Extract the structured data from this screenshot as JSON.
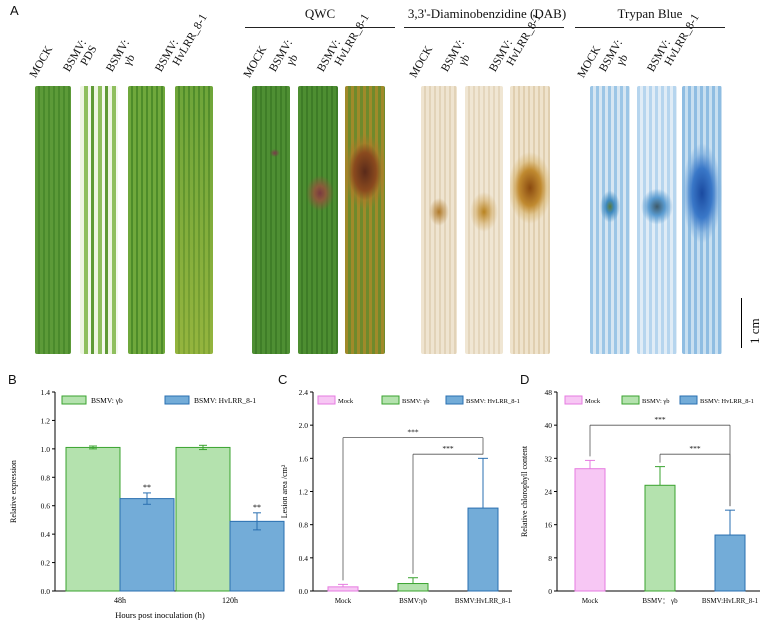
{
  "panels": {
    "a": "A",
    "b": "B",
    "c": "C",
    "d": "D"
  },
  "photo": {
    "groups": [
      "QWC",
      "3,3'-Diaminobenzidine (DAB)",
      "Trypan Blue"
    ],
    "labels": [
      [
        "MOCK"
      ],
      [
        "BSMV:",
        "PDS"
      ],
      [
        "BSMV:",
        "γb"
      ],
      [
        "BSMV:",
        "HvLRR_8-1"
      ],
      [
        "MOCK"
      ],
      [
        "BSMV:",
        "γb"
      ],
      [
        "BSMV:",
        "HvLRR_8-1"
      ],
      [
        "MOCK"
      ],
      [
        "BSMV:",
        "γb"
      ],
      [
        "BSMV:",
        "HvLRR_8-1"
      ],
      [
        "MOCK"
      ],
      [
        "BSMV:",
        "γb"
      ],
      [
        "BSMV:",
        "HvLRR_8-1"
      ]
    ],
    "scale": "1 cm"
  },
  "colors": {
    "mock": "#f7c7f4",
    "mock_edge": "#e67be0",
    "gb": "#b4e2ae",
    "gb_edge": "#3aa32f",
    "lrr": "#73acd8",
    "lrr_edge": "#2a6fb0",
    "leaf_green": "#4f8f2e",
    "leaf_pds": "#a8cc7a",
    "dab": "#e8dcc8",
    "trypan": "#cfe0ee"
  },
  "chart_data": [
    {
      "type": "bar",
      "xlabel": "Hours post inoculation (h)",
      "ylabel": "Relative expression",
      "categories": [
        "48h",
        "120h"
      ],
      "ylim": [
        0,
        1.4
      ],
      "yticks": [
        "0.0",
        "0.2",
        "0.4",
        "0.6",
        "0.8",
        "1.0",
        "1.2",
        "1.4"
      ],
      "legend_labels": [
        "BSMV: γb",
        "BSMV: HvLRR_8-1"
      ],
      "values": [
        [
          1.01,
          1.01
        ],
        [
          0.65,
          0.49
        ]
      ],
      "errors": [
        [
          0.01,
          0.015
        ],
        [
          0.04,
          0.06
        ]
      ],
      "annotations": [
        "**",
        "**"
      ]
    },
    {
      "type": "bar",
      "ylabel": "Lesion area /cm²",
      "categories": [
        "Mock",
        "BSMV:γb",
        "BSMV:HvLRR_8-1"
      ],
      "values": [
        0.05,
        0.09,
        1.0
      ],
      "errors": [
        0.03,
        0.07,
        0.6
      ],
      "ylim": [
        0,
        2.4
      ],
      "yticks": [
        "0.0",
        "0.4",
        "0.8",
        "1.2",
        "1.6",
        "2.0",
        "2.4"
      ],
      "legend_labels": [
        "Mock",
        "BSMV: γb",
        "BSMV: HvLRR_8-1"
      ],
      "significance": [
        "***",
        "***"
      ]
    },
    {
      "type": "bar",
      "ylabel": "Relative chlorophyll content",
      "categories": [
        "Mock",
        "BSMV： γb",
        "BSMV:HvLRR_8-1"
      ],
      "values": [
        29.5,
        25.5,
        13.5
      ],
      "errors": [
        2.0,
        4.5,
        6.0
      ],
      "ylim": [
        0,
        48
      ],
      "yticks": [
        "0",
        "8",
        "16",
        "24",
        "32",
        "40",
        "48"
      ],
      "legend_labels": [
        "Mock",
        "BSMV: γb",
        "BSMV: HvLRR_8-1"
      ],
      "significance": [
        "***",
        "***"
      ]
    }
  ]
}
